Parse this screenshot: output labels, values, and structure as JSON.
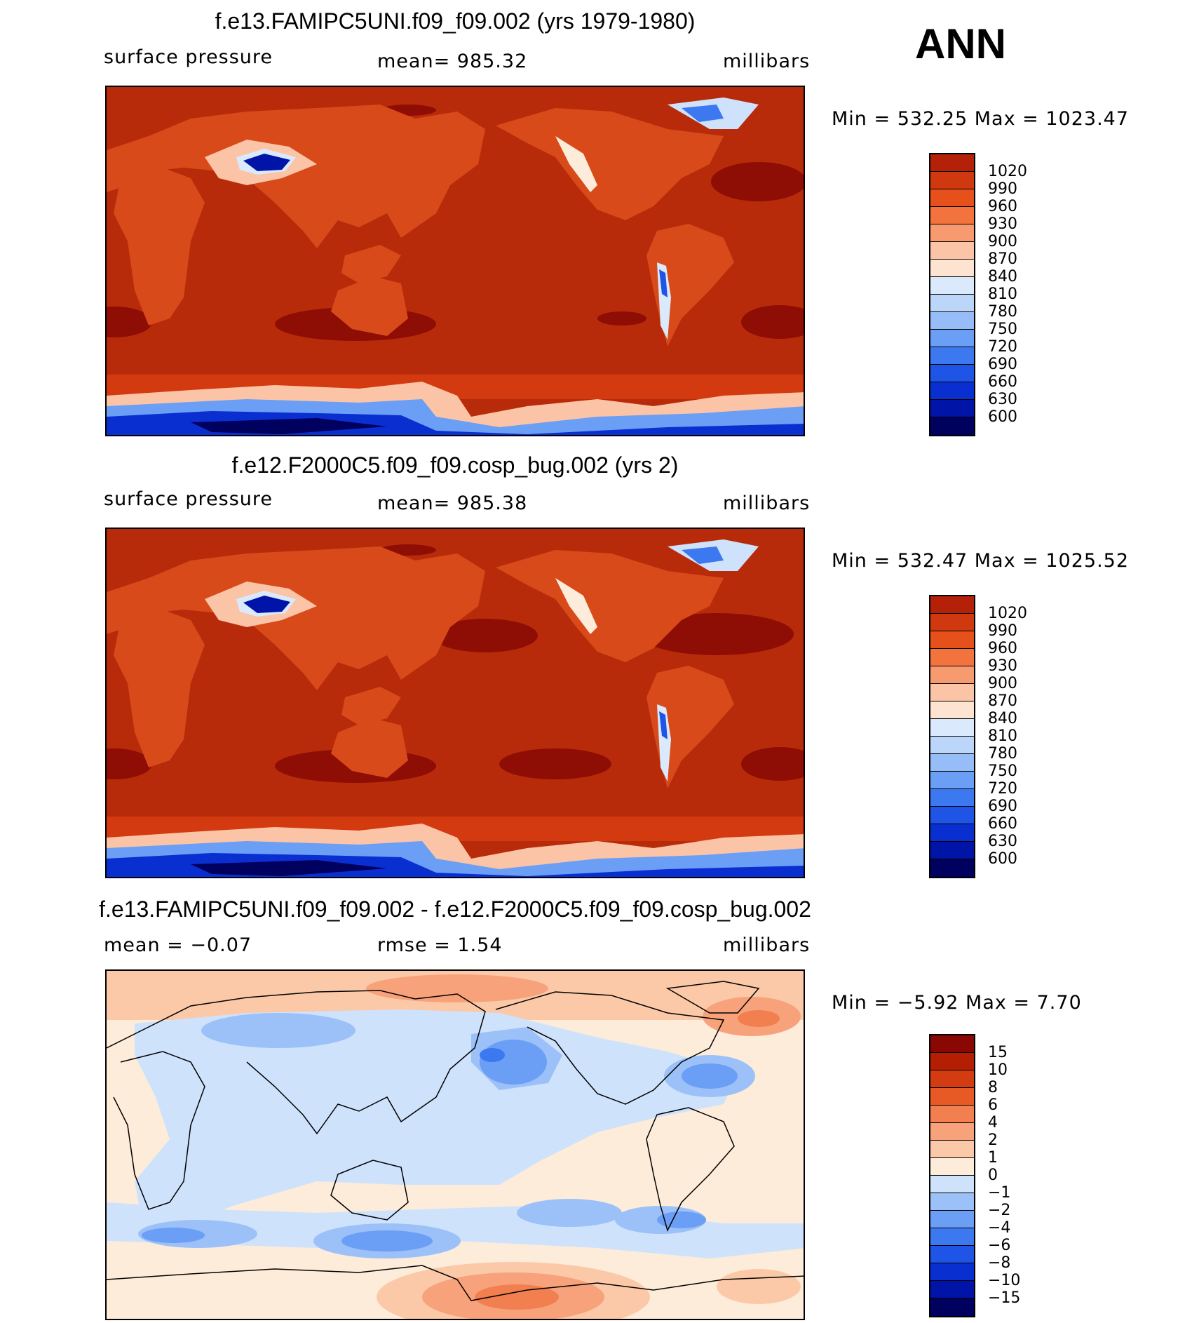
{
  "season": "ANN",
  "palette": {
    "abs": [
      "#00005e",
      "#0014a8",
      "#0a2fd0",
      "#1f55e6",
      "#3c78f0",
      "#6b9ef5",
      "#97bdf8",
      "#bcd6fa",
      "#dbe9fc",
      "#fde4d0",
      "#fbc4a6",
      "#f79a70",
      "#f2733e",
      "#e6501a",
      "#d03810",
      "#b42008",
      "#8c0804"
    ],
    "diff": [
      "#00005e",
      "#0014a8",
      "#0a2fd0",
      "#1f55e6",
      "#3c78f0",
      "#6b9ef5",
      "#9cc0f8",
      "#cfe2fb",
      "#fdecd9",
      "#fbc9a8",
      "#f7a27a",
      "#f17f50",
      "#e75a26",
      "#d23c10",
      "#b41f04",
      "#8a0804"
    ],
    "land": "#d84a1a",
    "ocean": "#b82b0a",
    "high": "#8e0d04"
  },
  "panels": [
    {
      "title": "f.e13.FAMIPC5UNI.f09_f09.002 (yrs 1979-1980)",
      "left_label": "surface pressure",
      "center_label": "mean=  985.32",
      "units": "millibars",
      "minmax": "Min  =  532.25  Max  =  1023.47",
      "colorbar_labels": [
        "1020",
        "990",
        "960",
        "930",
        "900",
        "870",
        "840",
        "810",
        "780",
        "750",
        "720",
        "690",
        "660",
        "630",
        "600"
      ]
    },
    {
      "title": "f.e12.F2000C5.f09_f09.cosp_bug.002 (yrs 2)",
      "left_label": "surface pressure",
      "center_label": "mean=  985.38",
      "units": "millibars",
      "minmax": "Min  =  532.47  Max  =  1025.52",
      "colorbar_labels": [
        "1020",
        "990",
        "960",
        "930",
        "900",
        "870",
        "840",
        "810",
        "780",
        "750",
        "720",
        "690",
        "660",
        "630",
        "600"
      ]
    },
    {
      "title": "f.e13.FAMIPC5UNI.f09_f09.002 - f.e12.F2000C5.f09_f09.cosp_bug.002",
      "left_label": "mean =   −0.07",
      "center_label": "rmse =     1.54",
      "units": "millibars",
      "minmax": "Min  =    −5.92  Max  =     7.70",
      "colorbar_labels": [
        "15",
        "10",
        "8",
        "6",
        "4",
        "2",
        "1",
        "0",
        "−1",
        "−2",
        "−4",
        "−6",
        "−8",
        "−10",
        "−15"
      ]
    }
  ]
}
